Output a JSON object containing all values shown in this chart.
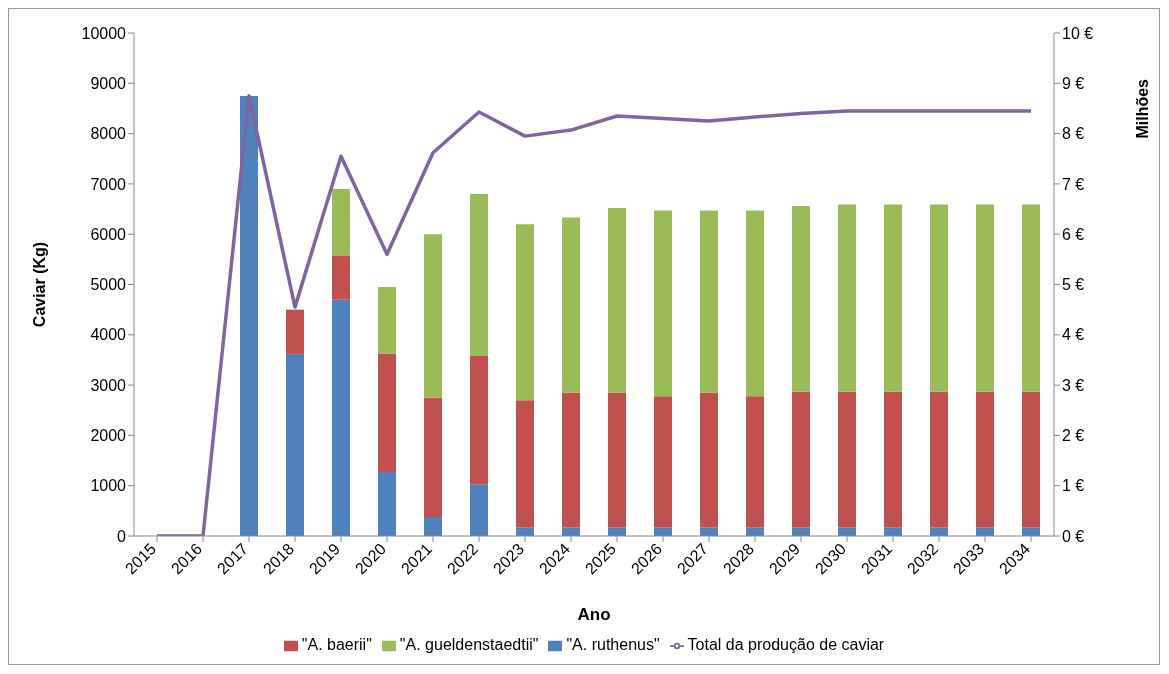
{
  "chart_data": {
    "type": "bar",
    "stacked": true,
    "xlabel": "Ano",
    "ylabel": "Caviar (Kg)",
    "y2label": "Milhões",
    "categories": [
      "2015",
      "2016",
      "2017",
      "2018",
      "2019",
      "2020",
      "2021",
      "2022",
      "2023",
      "2024",
      "2025",
      "2026",
      "2027",
      "2028",
      "2029",
      "2030",
      "2031",
      "2032",
      "2033",
      "2034"
    ],
    "series": [
      {
        "name": "\"A. ruthenus\"",
        "color": "#4f81bd",
        "values": [
          0,
          0,
          8750,
          3620,
          4700,
          1270,
          380,
          1030,
          170,
          170,
          170,
          170,
          170,
          170,
          170,
          170,
          170,
          170,
          170,
          170
        ]
      },
      {
        "name": "\"A. baerii\"",
        "color": "#c0504d",
        "values": [
          0,
          0,
          0,
          880,
          880,
          2360,
          2370,
          2550,
          2530,
          2680,
          2680,
          2610,
          2680,
          2610,
          2700,
          2700,
          2700,
          2700,
          2700,
          2700
        ]
      },
      {
        "name": "\"A. gueldenstaedtii\"",
        "color": "#9bbb59",
        "values": [
          0,
          0,
          0,
          0,
          1320,
          1320,
          3250,
          3220,
          3500,
          3480,
          3670,
          3690,
          3620,
          3690,
          3690,
          3720,
          3720,
          3720,
          3720,
          3720
        ]
      },
      {
        "name": "Total da produção de caviar",
        "type": "line",
        "axis": "y2",
        "color": "#8064a2",
        "values": [
          0,
          0,
          8.75,
          4.55,
          7.55,
          5.6,
          7.62,
          8.43,
          7.95,
          8.07,
          8.35,
          8.3,
          8.25,
          8.33,
          8.4,
          8.45,
          8.45,
          8.45,
          8.45,
          8.45
        ]
      }
    ],
    "ylim": [
      0,
      10000
    ],
    "yticks": [
      0,
      1000,
      2000,
      3000,
      4000,
      5000,
      6000,
      7000,
      8000,
      9000,
      10000
    ],
    "y2lim": [
      0,
      10
    ],
    "y2ticks": [
      {
        "value": 0,
        "label": "0 €"
      },
      {
        "value": 1,
        "label": "1 €"
      },
      {
        "value": 2,
        "label": "2 €"
      },
      {
        "value": 3,
        "label": "3 €"
      },
      {
        "value": 4,
        "label": "4 €"
      },
      {
        "value": 5,
        "label": "5 €"
      },
      {
        "value": 6,
        "label": "6 €"
      },
      {
        "value": 7,
        "label": "7 €"
      },
      {
        "value": 8,
        "label": "8 €"
      },
      {
        "value": 9,
        "label": "9 €"
      },
      {
        "value": 10,
        "label": "10 €"
      }
    ],
    "grid": false,
    "legend": "bottom"
  }
}
